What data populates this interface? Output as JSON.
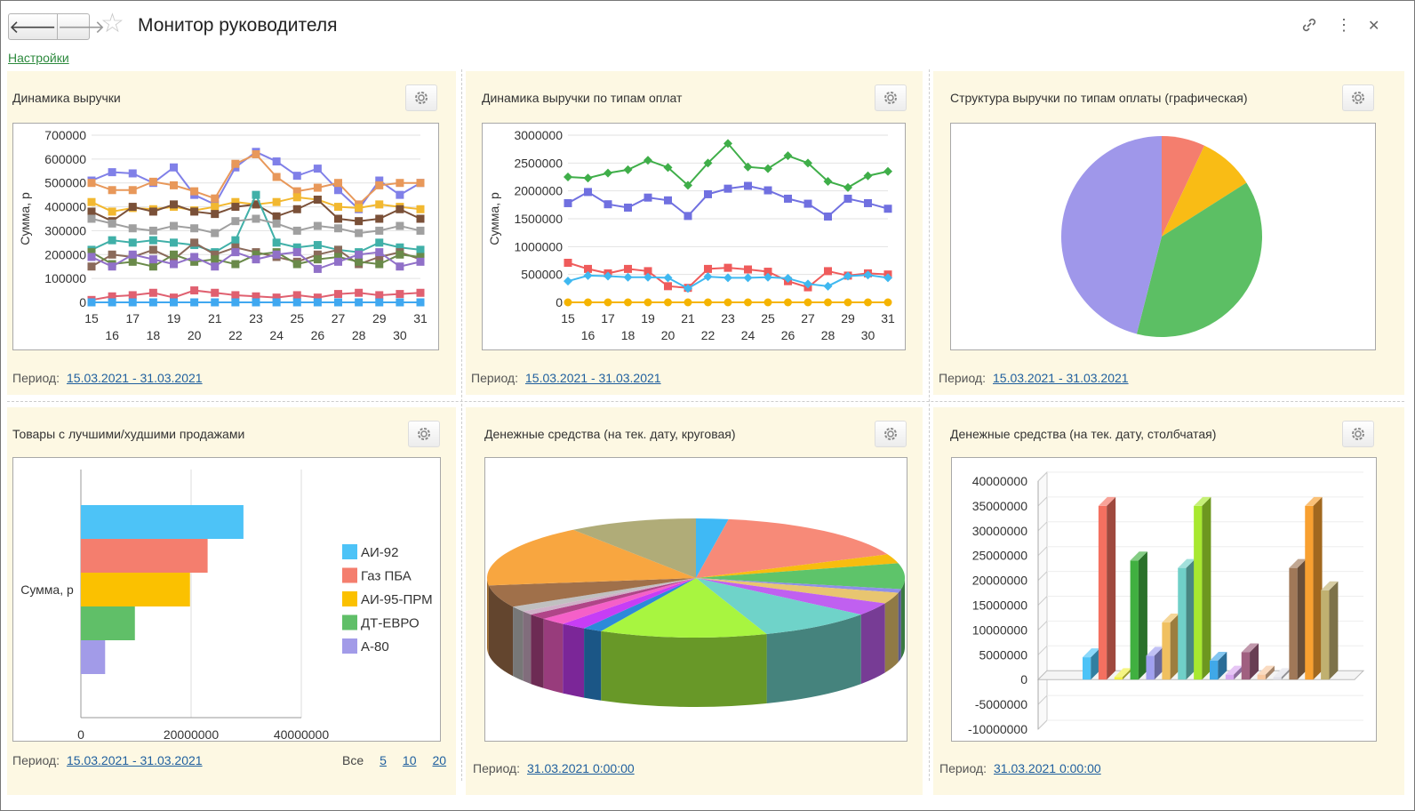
{
  "header": {
    "title": "Монитор руководителя",
    "settings_link": "Настройки"
  },
  "panels": {
    "revenue": {
      "title": "Динамика выручки",
      "period_label": "Период:",
      "period": "15.03.2021 - 31.03.2021"
    },
    "revenue_by_payment": {
      "title": "Динамика выручки по типам оплат",
      "period_label": "Период:",
      "period": "15.03.2021 - 31.03.2021"
    },
    "revenue_structure": {
      "title": "Структура выручки по типам оплаты (графическая)",
      "period_label": "Период:",
      "period": "15.03.2021 - 31.03.2021"
    },
    "top_products": {
      "title": "Товары с лучшими/худшими продажами",
      "period_label": "Период:",
      "period": "15.03.2021 - 31.03.2021",
      "pager": {
        "all": "Все",
        "p5": "5",
        "p10": "10",
        "p20": "20"
      }
    },
    "cash_pie": {
      "title": "Денежные средства (на тек. дату, круговая)",
      "period_label": "Период:",
      "period": "31.03.2021 0:00:00"
    },
    "cash_bar": {
      "title": "Денежные средства (на тек. дату, столбчатая)",
      "period_label": "Период:",
      "period": "31.03.2021 0:00:00"
    }
  },
  "colors": {
    "panel_bg": "#fdf8e3",
    "link": "#1f5f9e",
    "settings_link": "#2d8a3e"
  },
  "icons": {
    "back": "arrow-left-icon",
    "forward": "arrow-right-icon",
    "favorite": "star-icon",
    "link": "link-icon",
    "more": "more-icon",
    "close": "close-icon",
    "settings": "gear-icon"
  },
  "chart_data": [
    {
      "id": "revenue",
      "type": "line",
      "ylabel": "Сумма, р",
      "ylim": [
        0,
        700000
      ],
      "yticks": [
        "700000",
        "600000",
        "500000",
        "400000",
        "300000",
        "200000",
        "100000",
        "0"
      ],
      "x": [
        "15",
        "16",
        "17",
        "18",
        "19",
        "20",
        "21",
        "22",
        "23",
        "24",
        "25",
        "26",
        "27",
        "28",
        "29",
        "30",
        "31"
      ],
      "series": [
        {
          "color": "#8080e8",
          "values": [
            510000,
            545000,
            540000,
            500000,
            565000,
            450000,
            410000,
            565000,
            630000,
            590000,
            530000,
            560000,
            470000,
            390000,
            510000,
            450000,
            500000
          ]
        },
        {
          "color": "#e8985a",
          "values": [
            500000,
            470000,
            470000,
            505000,
            490000,
            465000,
            435000,
            580000,
            620000,
            525000,
            465000,
            480000,
            500000,
            410000,
            490000,
            500000,
            500000
          ]
        },
        {
          "color": "#f2b830",
          "values": [
            420000,
            380000,
            395000,
            390000,
            400000,
            385000,
            400000,
            420000,
            410000,
            420000,
            440000,
            430000,
            400000,
            395000,
            410000,
            400000,
            390000
          ]
        },
        {
          "color": "#7a5038",
          "values": [
            380000,
            340000,
            400000,
            380000,
            410000,
            380000,
            370000,
            400000,
            410000,
            360000,
            390000,
            430000,
            350000,
            340000,
            350000,
            390000,
            350000
          ]
        },
        {
          "color": "#40b0a8",
          "values": [
            220000,
            260000,
            250000,
            260000,
            250000,
            240000,
            210000,
            260000,
            450000,
            250000,
            230000,
            240000,
            220000,
            210000,
            250000,
            230000,
            220000
          ]
        },
        {
          "color": "#a0a0a0",
          "values": [
            350000,
            330000,
            310000,
            300000,
            320000,
            310000,
            290000,
            340000,
            350000,
            330000,
            300000,
            320000,
            310000,
            290000,
            300000,
            320000,
            300000
          ]
        },
        {
          "color": "#8a6a5a",
          "values": [
            150000,
            200000,
            190000,
            220000,
            180000,
            250000,
            200000,
            230000,
            210000,
            190000,
            170000,
            200000,
            220000,
            160000,
            190000,
            210000,
            180000
          ]
        },
        {
          "color": "#6a8a4a",
          "values": [
            210000,
            160000,
            170000,
            150000,
            200000,
            170000,
            180000,
            160000,
            200000,
            210000,
            160000,
            180000,
            190000,
            170000,
            160000,
            200000,
            190000
          ]
        },
        {
          "color": "#9070c8",
          "values": [
            190000,
            150000,
            200000,
            180000,
            160000,
            190000,
            150000,
            210000,
            180000,
            200000,
            210000,
            140000,
            170000,
            200000,
            210000,
            150000,
            170000
          ]
        },
        {
          "color": "#e06070",
          "values": [
            10000,
            25000,
            30000,
            40000,
            20000,
            50000,
            40000,
            30000,
            25000,
            20000,
            30000,
            20000,
            35000,
            40000,
            30000,
            35000,
            40000
          ]
        },
        {
          "color": "#40a8f0",
          "values": [
            0,
            0,
            0,
            0,
            0,
            0,
            0,
            0,
            0,
            0,
            0,
            0,
            0,
            0,
            0,
            0,
            0
          ]
        }
      ]
    },
    {
      "id": "revenue_by_payment",
      "type": "line",
      "ylabel": "Сумма, р",
      "ylim": [
        0,
        3000000
      ],
      "yticks": [
        "3000000",
        "2500000",
        "2000000",
        "1500000",
        "1000000",
        "500000",
        "0"
      ],
      "x": [
        "15",
        "16",
        "17",
        "18",
        "19",
        "20",
        "21",
        "22",
        "23",
        "24",
        "25",
        "26",
        "27",
        "28",
        "29",
        "30",
        "31"
      ],
      "series": [
        {
          "color": "#3fae49",
          "values": [
            2250000,
            2230000,
            2320000,
            2380000,
            2550000,
            2420000,
            2100000,
            2500000,
            2850000,
            2430000,
            2400000,
            2630000,
            2500000,
            2170000,
            2060000,
            2270000,
            2350000
          ]
        },
        {
          "color": "#7070e0",
          "values": [
            1780000,
            1980000,
            1760000,
            1700000,
            1880000,
            1830000,
            1550000,
            1940000,
            2040000,
            2090000,
            2010000,
            1860000,
            1770000,
            1540000,
            1860000,
            1780000,
            1680000
          ]
        },
        {
          "color": "#ef5b5b",
          "values": [
            710000,
            600000,
            520000,
            600000,
            560000,
            290000,
            260000,
            600000,
            620000,
            590000,
            550000,
            380000,
            270000,
            560000,
            480000,
            520000,
            500000
          ]
        },
        {
          "color": "#3fb8f0",
          "values": [
            380000,
            480000,
            470000,
            450000,
            450000,
            440000,
            250000,
            460000,
            440000,
            440000,
            450000,
            430000,
            330000,
            290000,
            470000,
            490000,
            440000
          ]
        },
        {
          "color": "#f5b400",
          "values": [
            0,
            0,
            0,
            0,
            0,
            0,
            0,
            0,
            0,
            0,
            0,
            0,
            0,
            0,
            0,
            0,
            0
          ]
        }
      ]
    },
    {
      "id": "revenue_structure",
      "type": "pie",
      "slices": [
        {
          "color": "#f47e6e",
          "value": 7
        },
        {
          "color": "#f9bc15",
          "value": 9
        },
        {
          "color": "#5cbf64",
          "value": 38
        },
        {
          "color": "#9f97ea",
          "value": 46
        }
      ]
    },
    {
      "id": "top_products",
      "type": "bar",
      "ylabel": "Сумма, р",
      "xlim": [
        0,
        40000000
      ],
      "xticks": [
        "0",
        "20000000",
        "40000000"
      ],
      "categories": [
        "АИ-92",
        "Газ ПБА",
        "АИ-95-ПРМ",
        "ДТ-ЕВРО",
        "А-80"
      ],
      "series": [
        {
          "name": "АИ-92",
          "color": "#4dc3f7",
          "value": 29500000
        },
        {
          "name": "Газ ПБА",
          "color": "#f47e6e",
          "value": 23000000
        },
        {
          "name": "АИ-95-ПРМ",
          "color": "#fbc100",
          "value": 19800000
        },
        {
          "name": "ДТ-ЕВРО",
          "color": "#60bf68",
          "value": 9800000
        },
        {
          "name": "А-80",
          "color": "#a29be8",
          "value": 4400000
        }
      ]
    },
    {
      "id": "cash_pie",
      "type": "pie",
      "slices": [
        {
          "color": "#3fb9f5",
          "value": 2.5
        },
        {
          "color": "#f78a78",
          "value": 16
        },
        {
          "color": "#f7bd0f",
          "value": 2.5
        },
        {
          "color": "#5ec46a",
          "value": 7
        },
        {
          "color": "#8f8fe8",
          "value": 1
        },
        {
          "color": "#e8c570",
          "value": 3
        },
        {
          "color": "#c060f0",
          "value": 3.5
        },
        {
          "color": "#6fd3c9",
          "value": 9
        },
        {
          "color": "#a8f540",
          "value": 13
        },
        {
          "color": "#2c8ad8",
          "value": 1.5
        },
        {
          "color": "#c73df5",
          "value": 2
        },
        {
          "color": "#f560c8",
          "value": 2
        },
        {
          "color": "#b04588",
          "value": 1.5
        },
        {
          "color": "#d0b0c8",
          "value": 1
        },
        {
          "color": "#c0c0c0",
          "value": 1.5
        },
        {
          "color": "#a0704a",
          "value": 6
        },
        {
          "color": "#f8a640",
          "value": 17
        },
        {
          "color": "#b0ac78",
          "value": 10
        }
      ]
    },
    {
      "id": "cash_bar",
      "type": "bar",
      "ylim": [
        -10000000,
        40000000
      ],
      "yticks": [
        "40000000",
        "35000000",
        "30000000",
        "25000000",
        "20000000",
        "15000000",
        "10000000",
        "5000000",
        "0",
        "-5000000",
        "-10000000"
      ],
      "values": [
        {
          "color": "#4dc3f7",
          "value": 4500000
        },
        {
          "color": "#f47060",
          "value": 35000000
        },
        {
          "color": "#f0f040",
          "value": 500000
        },
        {
          "color": "#40b040",
          "value": 24000000
        },
        {
          "color": "#a0a0f0",
          "value": 4800000
        },
        {
          "color": "#f0c060",
          "value": 11500000
        },
        {
          "color": "#70d0c8",
          "value": 22500000
        },
        {
          "color": "#a8e830",
          "value": 35000000
        },
        {
          "color": "#40a8e8",
          "value": 3800000
        },
        {
          "color": "#d8a8f0",
          "value": 1000000
        },
        {
          "color": "#a06080",
          "value": 5500000
        },
        {
          "color": "#f8c8a0",
          "value": 1000000
        },
        {
          "color": "#e0e0e8",
          "value": 500000
        },
        {
          "color": "#a07858",
          "value": 22500000
        },
        {
          "color": "#f8a030",
          "value": 35000000
        },
        {
          "color": "#c0b070",
          "value": 18000000
        }
      ]
    }
  ]
}
